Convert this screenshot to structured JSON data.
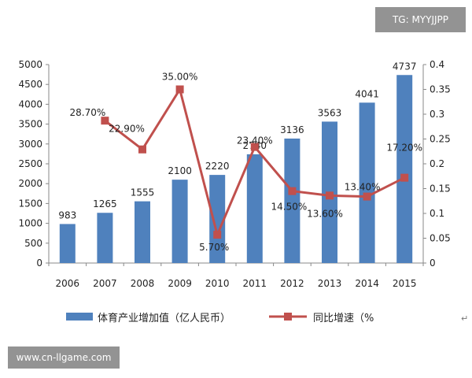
{
  "watermarks": {
    "top_right": "TG: MYYJJPP",
    "bottom_left": "www.cn-llgame.com",
    "corner_mark": "↵"
  },
  "chart_data": {
    "type": "bar+line",
    "title": "",
    "categories": [
      "2006",
      "2007",
      "2008",
      "2009",
      "2010",
      "2011",
      "2012",
      "2013",
      "2014",
      "2015"
    ],
    "series": [
      {
        "name": "体育产业增加值（亿人民币）",
        "type": "bar",
        "axis": "left",
        "color": "#4F81BD",
        "values": [
          983,
          1265,
          1555,
          2100,
          2220,
          2740,
          3136,
          3563,
          4041,
          4737
        ],
        "labels": [
          "983",
          "1265",
          "1555",
          "2100",
          "2220",
          "2740",
          "3136",
          "3563",
          "4041",
          "4737"
        ]
      },
      {
        "name": "同比增速（%",
        "type": "line",
        "axis": "right",
        "color": "#C0504D",
        "values": [
          null,
          0.287,
          0.229,
          0.35,
          0.057,
          0.234,
          0.145,
          0.136,
          0.134,
          0.172
        ],
        "labels": [
          "",
          "28.70%",
          "22.90%",
          "35.00%",
          "5.70%",
          "23.40%",
          "14.50%",
          "13.60%",
          "13.40%",
          "17.20%"
        ]
      }
    ],
    "y_left": {
      "min": 0,
      "max": 5000,
      "ticks": [
        "0",
        "500",
        "1000",
        "1500",
        "2000",
        "2500",
        "3000",
        "3500",
        "4000",
        "4500",
        "5000"
      ]
    },
    "y_right": {
      "min": 0,
      "max": 0.4,
      "ticks": [
        "0",
        "0.05",
        "0.1",
        "0.15",
        "0.2",
        "0.25",
        "0.3",
        "0.35",
        "0.4"
      ]
    },
    "grid": false,
    "legend": "bottom"
  }
}
